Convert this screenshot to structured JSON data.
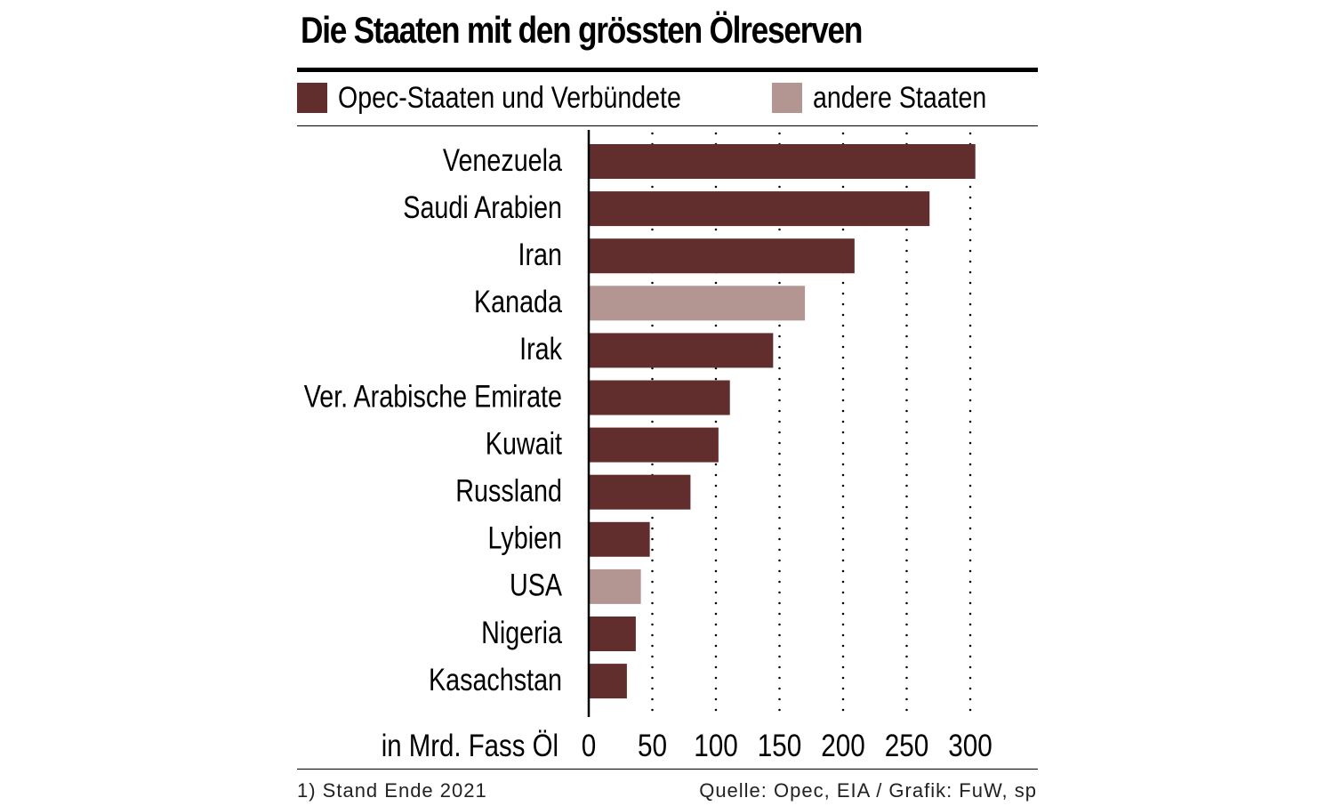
{
  "title": "Die Staaten mit den grössten Ölreserven",
  "legend": [
    {
      "label": "Opec-Staaten und Verbündete",
      "color": "#622e2d"
    },
    {
      "label": "andere Staaten",
      "color": "#b39592"
    }
  ],
  "footnote": "1) Stand Ende 2021",
  "source": "Quelle: Opec, EIA / Grafik: FuW, sp",
  "chart_data": {
    "type": "bar",
    "orientation": "horizontal",
    "title": "Die Staaten mit den grössten Ölreserven",
    "xlabel": "in Mrd. Fass Öl",
    "xlim": [
      0,
      300
    ],
    "xticks": [
      0,
      50,
      100,
      150,
      200,
      250,
      300
    ],
    "grid": "dotted vertical",
    "legend_position": "top",
    "categories": [
      "Venezuela",
      "Saudi Arabien",
      "Iran",
      "Kanada",
      "Irak",
      "Ver. Arabische Emirate",
      "Kuwait",
      "Russland",
      "Lybien",
      "USA",
      "Nigeria",
      "Kasachstan"
    ],
    "values": [
      304,
      268,
      209,
      170,
      145,
      111,
      102,
      80,
      48,
      41,
      37,
      30
    ],
    "groups": [
      "Opec-Staaten und Verbündete",
      "Opec-Staaten und Verbündete",
      "Opec-Staaten und Verbündete",
      "andere Staaten",
      "Opec-Staaten und Verbündete",
      "Opec-Staaten und Verbündete",
      "Opec-Staaten und Verbündete",
      "Opec-Staaten und Verbündete",
      "Opec-Staaten und Verbündete",
      "andere Staaten",
      "Opec-Staaten und Verbündete",
      "Opec-Staaten und Verbündete"
    ]
  }
}
